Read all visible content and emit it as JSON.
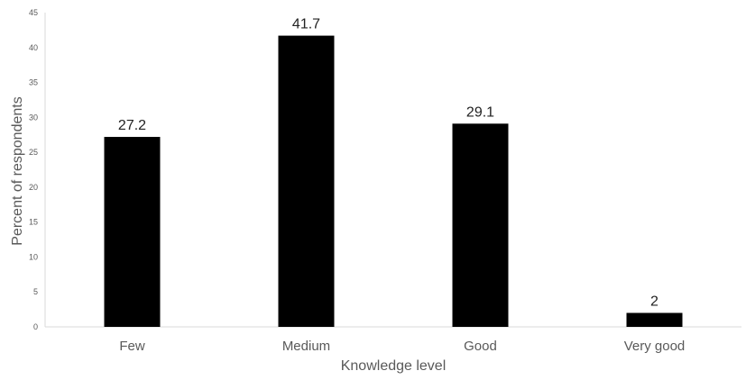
{
  "chart_data": {
    "type": "bar",
    "categories": [
      "Few",
      "Medium",
      "Good",
      "Very good"
    ],
    "values": [
      27.2,
      41.7,
      29.1,
      2
    ],
    "data_labels": [
      "27.2",
      "41.7",
      "29.1",
      "2"
    ],
    "title": "",
    "xlabel": "Knowledge level",
    "ylabel": "Percent of respondents",
    "ylim": [
      0,
      45
    ],
    "yticks": [
      "0",
      "5",
      "10",
      "15",
      "20",
      "25",
      "30",
      "35",
      "40",
      "45"
    ],
    "bar_color": "#000000",
    "grid": false,
    "legend": "none"
  }
}
